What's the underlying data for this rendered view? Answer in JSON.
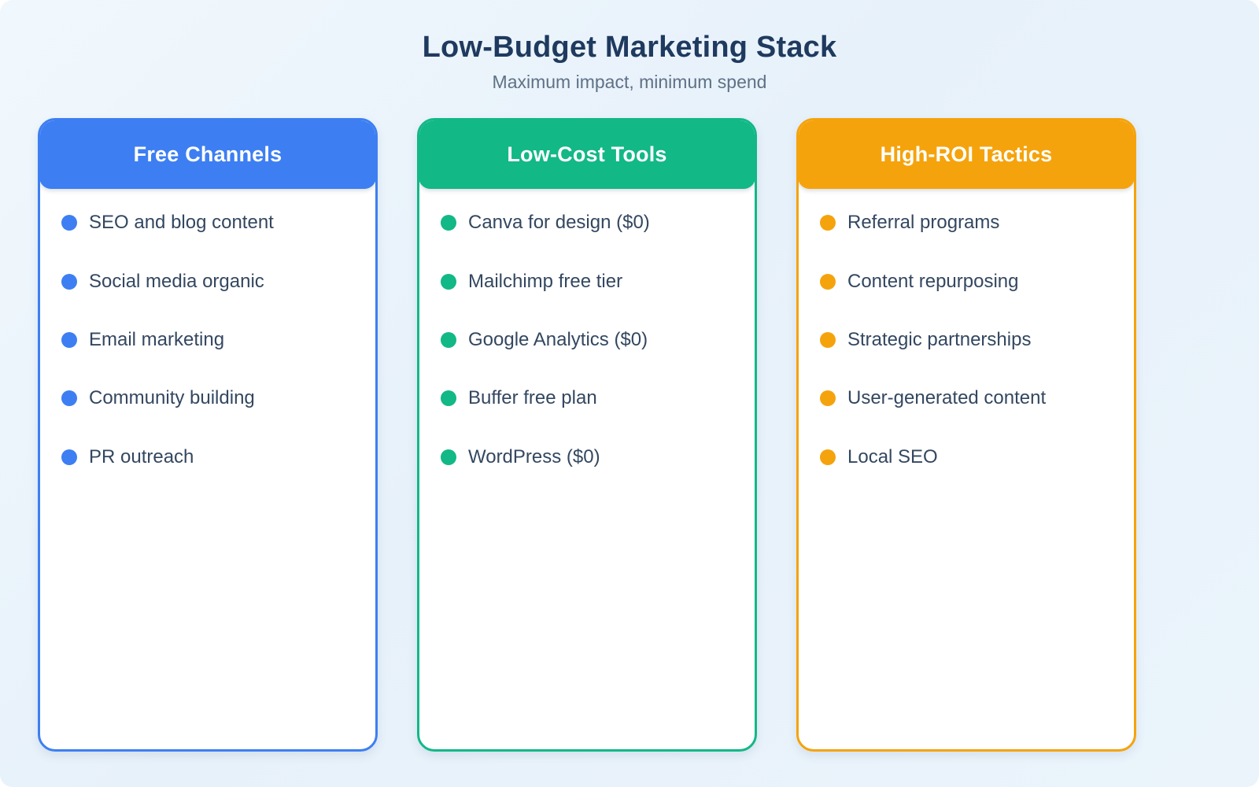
{
  "page": {
    "title": "Low-Budget Marketing Stack",
    "subtitle": "Maximum impact, minimum spend"
  },
  "columns": [
    {
      "header": "Free Channels",
      "accent_color": "#3d7ff2",
      "items": [
        "SEO and blog content",
        "Social media organic",
        "Email marketing",
        "Community building",
        "PR outreach"
      ]
    },
    {
      "header": "Low-Cost Tools",
      "accent_color": "#12b886",
      "items": [
        "Canva for design ($0)",
        "Mailchimp free tier",
        "Google Analytics ($0)",
        "Buffer free plan",
        "WordPress ($0)"
      ]
    },
    {
      "header": "High-ROI Tactics",
      "accent_color": "#f5a30c",
      "items": [
        "Referral programs",
        "Content repurposing",
        "Strategic partnerships",
        "User-generated content",
        "Local SEO"
      ]
    }
  ],
  "colors": {
    "title_text": "#1f3a5f",
    "subtitle_text": "#5e7186",
    "item_text": "#334760",
    "card_background": "#ffffff",
    "page_background": "#e9f2fa"
  }
}
